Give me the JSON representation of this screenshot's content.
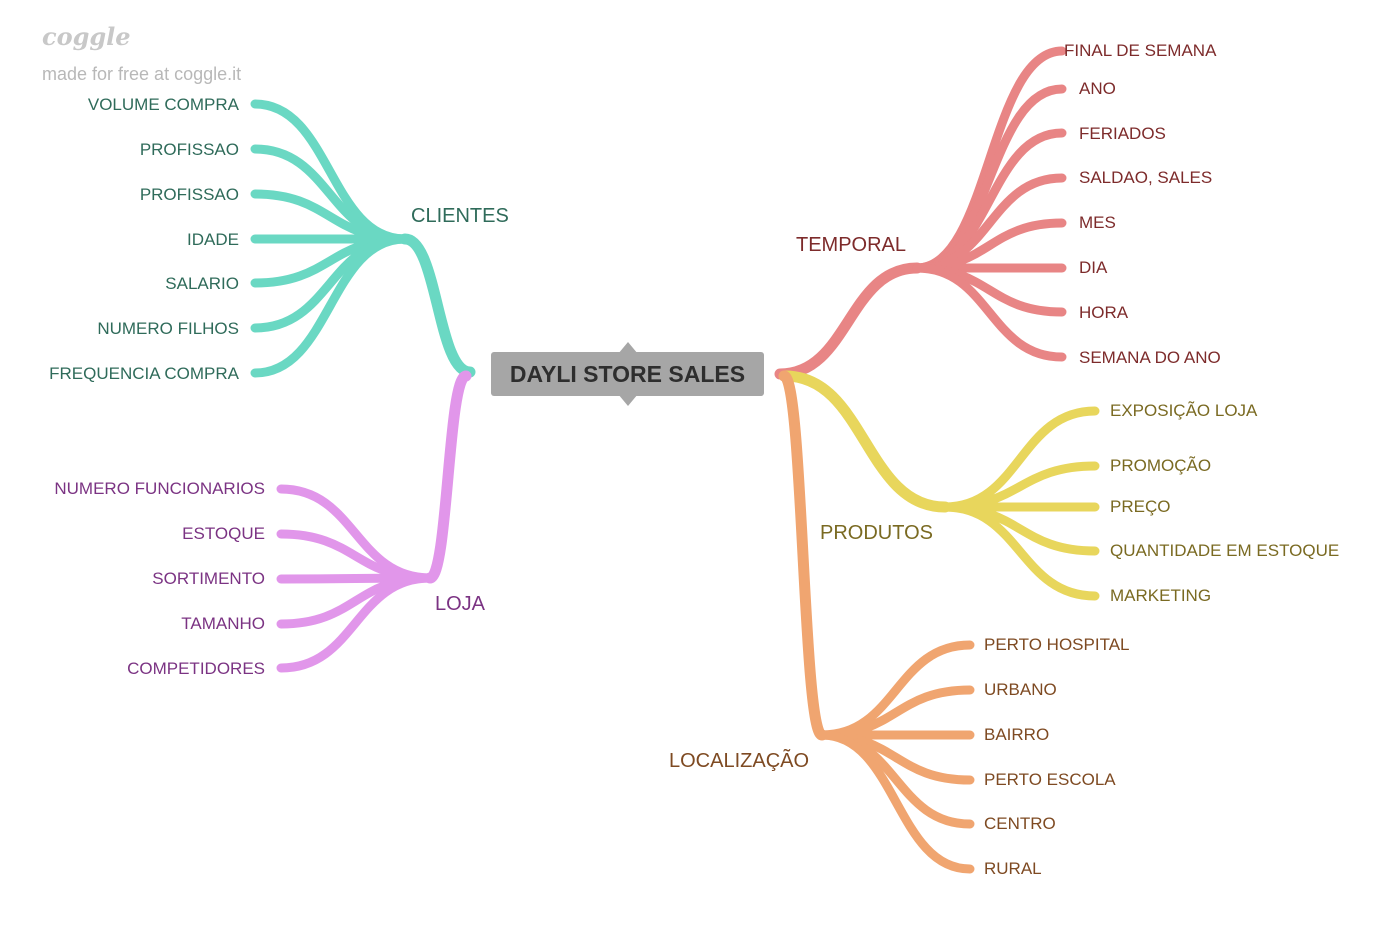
{
  "watermark": {
    "logo": "coggle",
    "tagline": "made for free at coggle.it"
  },
  "root": {
    "label": "DAYLI STORE SALES",
    "color": "#a6a6a6"
  },
  "branches": [
    {
      "key": "clientes",
      "label": "CLIENTES",
      "color": "#6ad8c3",
      "text_color": "#2f6b5a",
      "leaves": [
        "VOLUME COMPRA",
        "PROFISSAO",
        "PROFISSAO",
        "IDADE",
        "SALARIO",
        "NUMERO FILHOS",
        "FREQUENCIA COMPRA"
      ]
    },
    {
      "key": "loja",
      "label": "LOJA",
      "color": "#e196ea",
      "text_color": "#7b3383",
      "leaves": [
        "NUMERO FUNCIONARIOS",
        "ESTOQUE",
        "SORTIMENTO",
        "TAMANHO",
        "COMPETIDORES"
      ]
    },
    {
      "key": "temporal",
      "label": "TEMPORAL",
      "color": "#e88585",
      "text_color": "#7d2b2b",
      "leaves": [
        "FINAL DE SEMANA",
        "ANO",
        "FERIADOS",
        "SALDAO, SALES",
        "MES",
        "DIA",
        "HORA",
        "SEMANA DO ANO"
      ]
    },
    {
      "key": "produtos",
      "label": "PRODUTOS",
      "color": "#e8d65c",
      "text_color": "#7a6a22",
      "leaves": [
        "EXPOSIÇÃO LOJA",
        "PROMOÇÃO",
        "PREÇO",
        "QUANTIDADE EM ESTOQUE",
        "MARKETING"
      ]
    },
    {
      "key": "localizacao",
      "label": "LOCALIZAÇÃO",
      "color": "#f0a570",
      "text_color": "#7e4a22",
      "leaves": [
        "PERTO HOSPITAL",
        "URBANO",
        "BAIRRO",
        "PERTO ESCOLA",
        "CENTRO",
        "RURAL"
      ]
    }
  ]
}
